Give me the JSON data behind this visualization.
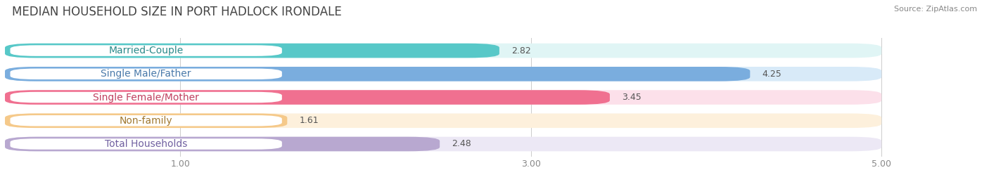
{
  "title": "MEDIAN HOUSEHOLD SIZE IN PORT HADLOCK IRONDALE",
  "source": "Source: ZipAtlas.com",
  "categories": [
    "Married-Couple",
    "Single Male/Father",
    "Single Female/Mother",
    "Non-family",
    "Total Households"
  ],
  "values": [
    2.82,
    4.25,
    3.45,
    1.61,
    2.48
  ],
  "bar_colors": [
    "#57c8c8",
    "#7aadde",
    "#f07090",
    "#f5c98a",
    "#b8a8d0"
  ],
  "bar_bg_colors": [
    "#e0f5f5",
    "#d8eaf8",
    "#fce0ea",
    "#fdf0dc",
    "#ece8f5"
  ],
  "label_text_colors": [
    "#2a8a8a",
    "#4a7aaa",
    "#c04060",
    "#a07830",
    "#7060a0"
  ],
  "xlim_min": 0,
  "xlim_max": 5.5,
  "axis_min": 0,
  "axis_max": 5.0,
  "xticks": [
    1.0,
    3.0,
    5.0
  ],
  "title_fontsize": 12,
  "label_fontsize": 10,
  "value_fontsize": 9,
  "background_color": "#ffffff"
}
